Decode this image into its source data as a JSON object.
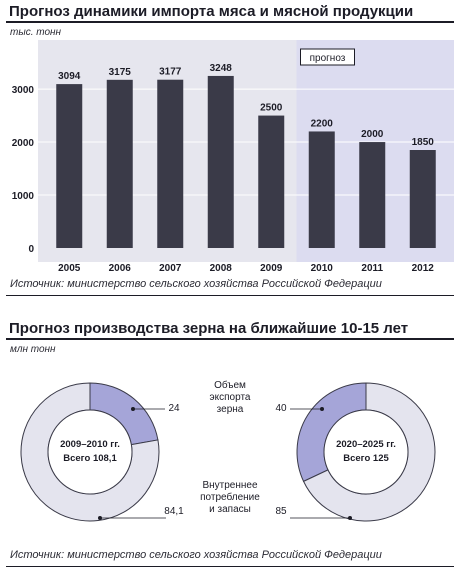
{
  "chart_data": [
    {
      "type": "bar",
      "title": "Прогноз динамики импорта мяса и мясной продукции",
      "unit": "тыс. тонн",
      "categories": [
        "2005",
        "2006",
        "2007",
        "2008",
        "2009",
        "2010",
        "2011",
        "2012"
      ],
      "values": [
        3094,
        3175,
        3177,
        3248,
        2500,
        2200,
        2000,
        1850
      ],
      "yticks": [
        "0",
        "1000",
        "2000",
        "3000"
      ],
      "ylim": [
        0,
        3700
      ],
      "grid": true,
      "forecast_label": "прогноз",
      "forecast_from": "2010",
      "source": "Источник: министерство сельского хозяйства Российской Федерации",
      "colors": {
        "bar": "#3a3a48",
        "forecast_bg": "#dcdcf0",
        "plot_bg": "#e6e6ee",
        "grid": "#ffffff"
      }
    },
    {
      "type": "pie",
      "title": "Прогноз производства зерна на ближайшие 10-15 лет",
      "unit": "млн тонн",
      "series_labels": {
        "export": "Объем экспорта зерна",
        "domestic": "Внутреннее потребление и запасы"
      },
      "pies": [
        {
          "period": "2009–2010 гг.",
          "total_label": "Всего 108,1",
          "export": 24,
          "export_label": "24",
          "domestic": 84.1,
          "domestic_label": "84,1"
        },
        {
          "period": "2020–2025 гг.",
          "total_label": "Всего 125",
          "export": 40,
          "export_label": "40",
          "domestic": 85,
          "domestic_label": "85"
        }
      ],
      "source": "Источник: министерство сельского хозяйства Российской Федерации",
      "colors": {
        "export": "#a5a5d8",
        "domestic": "#e4e4ee",
        "ring_stroke": "#3a3a48",
        "center": "#ffffff"
      }
    }
  ]
}
